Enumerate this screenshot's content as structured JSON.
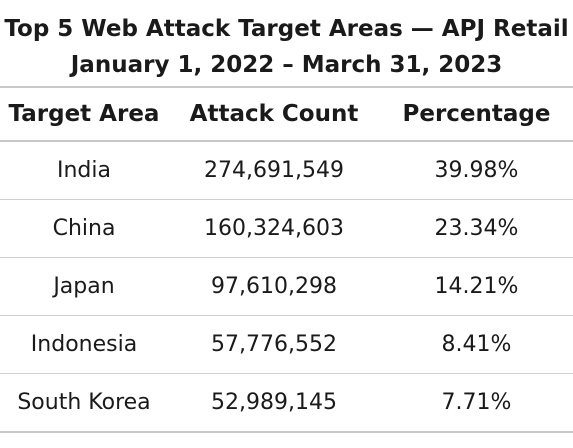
{
  "chart_data": {
    "type": "table",
    "title": "Top 5 Web Attack Target Areas — APJ Retail",
    "subtitle": "January 1, 2022 – March 31, 2023",
    "columns": [
      "Target Area",
      "Attack Count",
      "Percentage"
    ],
    "rows": [
      [
        "India",
        "274,691,549",
        "39.98%"
      ],
      [
        "China",
        "160,324,603",
        "23.34%"
      ],
      [
        "Japan",
        "97,610,298",
        "14.21%"
      ],
      [
        "Indonesia",
        "57,776,552",
        "8.41%"
      ],
      [
        "South Korea",
        "52,989,145",
        "7.71%"
      ]
    ]
  }
}
